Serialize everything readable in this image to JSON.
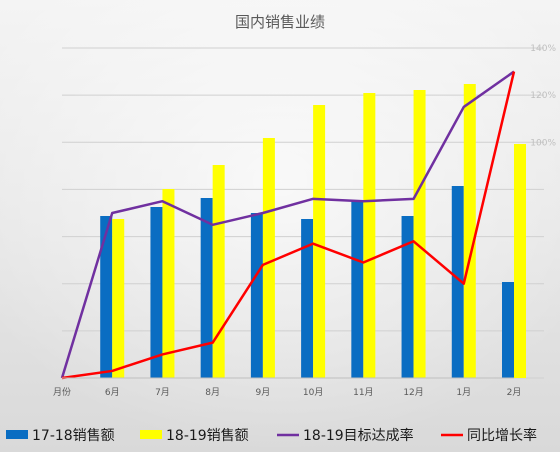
{
  "chart_data": {
    "type": "bar",
    "title": "国内销售业绩",
    "categories": [
      "月份",
      "6月",
      "7月",
      "8月",
      "9月",
      "10月",
      "11月",
      "12月",
      "1月",
      "2月"
    ],
    "series": [
      {
        "name": "17-18销售额",
        "type": "bar",
        "axis": "left",
        "color": "#0a6dc2",
        "values": [
          null,
          54,
          57,
          60,
          55,
          53,
          59,
          54,
          64,
          32
        ]
      },
      {
        "name": "18-19销售额",
        "type": "bar",
        "axis": "left",
        "color": "#ffff00",
        "values": [
          null,
          53,
          63,
          71,
          80,
          91,
          95,
          96,
          98,
          78
        ]
      },
      {
        "name": "18-19目标达成率",
        "type": "line",
        "axis": "right",
        "color": "#7030a0",
        "values": [
          0,
          70,
          75,
          65,
          70,
          76,
          75,
          76,
          115,
          130
        ]
      },
      {
        "name": "同比增长率",
        "type": "line",
        "axis": "right",
        "color": "#ff0000",
        "values": [
          0,
          3,
          10,
          15,
          48,
          57,
          49,
          58,
          40,
          130
        ]
      }
    ],
    "y2ticks": [
      "140%",
      "120%",
      "100%"
    ],
    "ylim": [
      0,
      110
    ],
    "y2lim": [
      0,
      140
    ],
    "grid": true,
    "legend": "bottom"
  }
}
